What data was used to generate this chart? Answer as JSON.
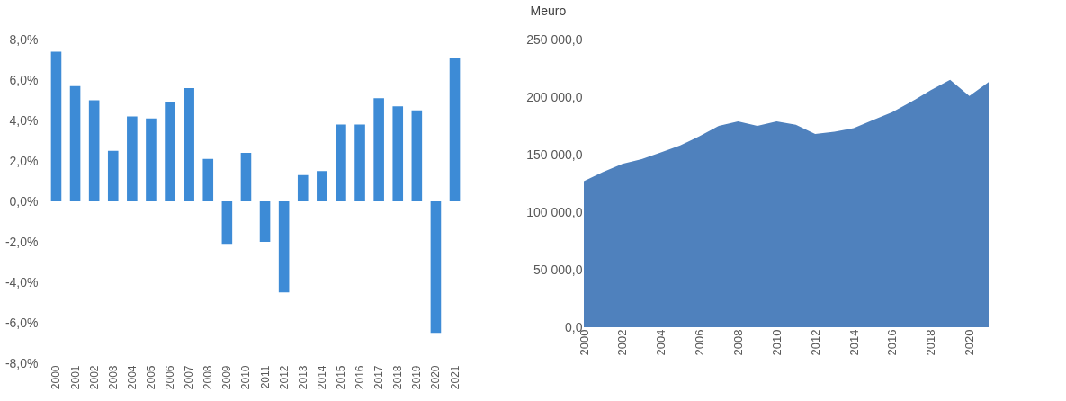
{
  "chart_data": [
    {
      "type": "bar",
      "categories": [
        "2000",
        "2001",
        "2002",
        "2003",
        "2004",
        "2005",
        "2006",
        "2007",
        "2008",
        "2009",
        "2010",
        "2011",
        "2012",
        "2013",
        "2014",
        "2015",
        "2016",
        "2017",
        "2018",
        "2019",
        "2020",
        "2021"
      ],
      "values": [
        7.4,
        5.7,
        5.0,
        2.5,
        4.2,
        4.1,
        4.9,
        5.6,
        2.1,
        -2.1,
        2.4,
        -2.0,
        -4.5,
        1.3,
        1.5,
        3.8,
        3.8,
        5.1,
        4.7,
        4.5,
        -6.5,
        7.1
      ],
      "color": "#3d8bd6",
      "ylim": [
        -8,
        8
      ],
      "yticks": [
        {
          "value": -8,
          "label": "-8,0%"
        },
        {
          "value": -6,
          "label": "-6,0%"
        },
        {
          "value": -4,
          "label": "-4,0%"
        },
        {
          "value": -2,
          "label": "-2,0%"
        },
        {
          "value": 0,
          "label": "0,0%"
        },
        {
          "value": 2,
          "label": "2,0%"
        },
        {
          "value": 4,
          "label": "4,0%"
        },
        {
          "value": 6,
          "label": "6,0%"
        },
        {
          "value": 8,
          "label": "8,0%"
        }
      ],
      "grid": false
    },
    {
      "type": "area",
      "ylabel": "Meuro",
      "x": [
        2000,
        2001,
        2002,
        2003,
        2004,
        2005,
        2006,
        2007,
        2008,
        2009,
        2010,
        2011,
        2012,
        2013,
        2014,
        2015,
        2016,
        2017,
        2018,
        2019,
        2020,
        2021
      ],
      "values": [
        127000,
        135000,
        142000,
        146000,
        152000,
        158000,
        166000,
        175000,
        179000,
        175000,
        179000,
        176000,
        168000,
        170000,
        173000,
        180000,
        187000,
        196000,
        206000,
        215000,
        201000,
        213000
      ],
      "color": "#4f81bd",
      "xlim": [
        2000,
        2021
      ],
      "xticks": [
        2000,
        2002,
        2004,
        2006,
        2008,
        2010,
        2012,
        2014,
        2016,
        2018,
        2020
      ],
      "ylim": [
        0,
        250000
      ],
      "yticks": [
        {
          "value": 0,
          "label": "0,0"
        },
        {
          "value": 50000,
          "label": "50 000,0"
        },
        {
          "value": 100000,
          "label": "100 000,0"
        },
        {
          "value": 150000,
          "label": "150 000,0"
        },
        {
          "value": 200000,
          "label": "200 000,0"
        },
        {
          "value": 250000,
          "label": "250 000,0"
        }
      ],
      "grid": false
    }
  ]
}
